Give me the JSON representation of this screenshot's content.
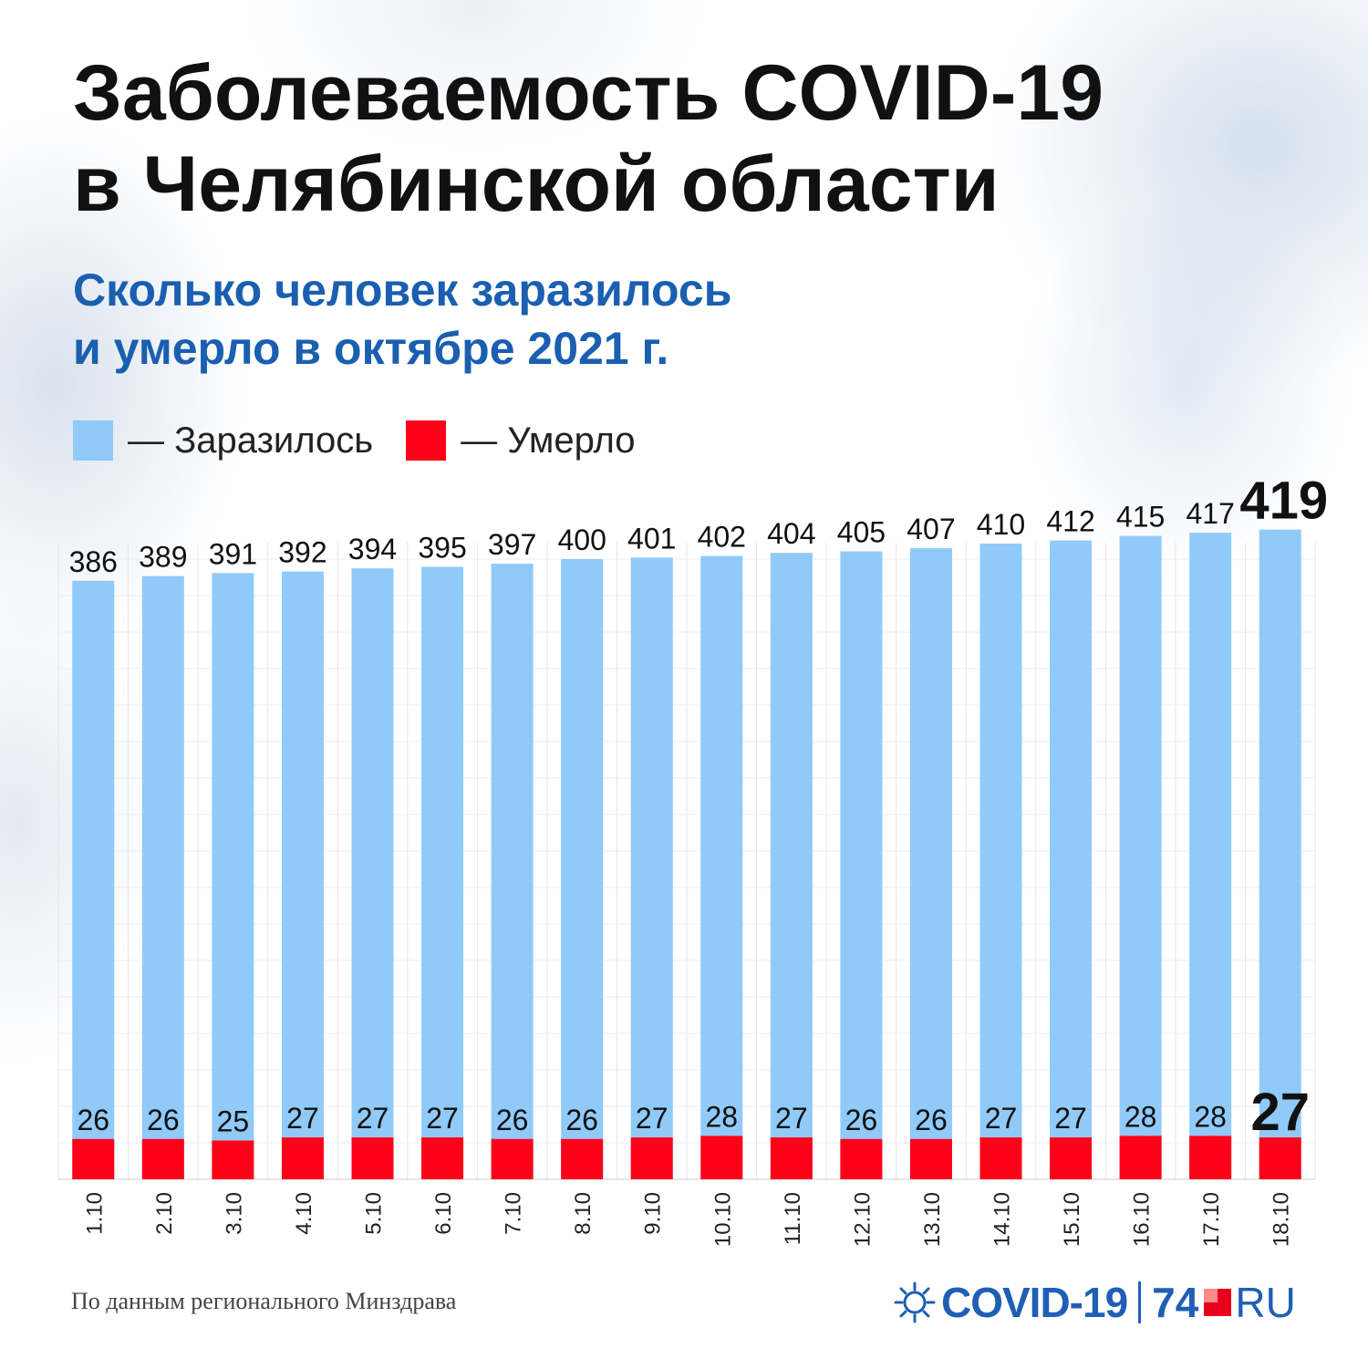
{
  "title_lines": [
    "Заболеваемость COVID-19",
    "в Челябинской области"
  ],
  "subtitle_lines": [
    "Сколько человек заразилось",
    "и умерло в октябре 2021 г."
  ],
  "legend": [
    {
      "label": "— Заразилось",
      "color": "#90caf9"
    },
    {
      "label": "— Умерло",
      "color": "#ff0019"
    }
  ],
  "source": "По данным регионального Минздрава",
  "logo": {
    "part1": "COVID-19",
    "part2": "74",
    "part3": "RU"
  },
  "chart_data": {
    "type": "bar",
    "categories": [
      "1.10",
      "2.10",
      "3.10",
      "4.10",
      "5.10",
      "6.10",
      "7.10",
      "8.10",
      "9.10",
      "10.10",
      "11.10",
      "12.10",
      "13.10",
      "14.10",
      "15.10",
      "16.10",
      "17.10",
      "18.10"
    ],
    "series": [
      {
        "name": "Заразилось",
        "color": "#90caf9",
        "values": [
          386,
          389,
          391,
          392,
          394,
          395,
          397,
          400,
          401,
          402,
          404,
          405,
          407,
          410,
          412,
          415,
          417,
          419
        ]
      },
      {
        "name": "Умерло",
        "color": "#ff0019",
        "values": [
          26,
          26,
          25,
          27,
          27,
          27,
          26,
          26,
          27,
          28,
          27,
          26,
          26,
          27,
          27,
          28,
          28,
          27
        ]
      }
    ],
    "highlight_last": true,
    "grid": true,
    "legend_position": "top-left"
  }
}
